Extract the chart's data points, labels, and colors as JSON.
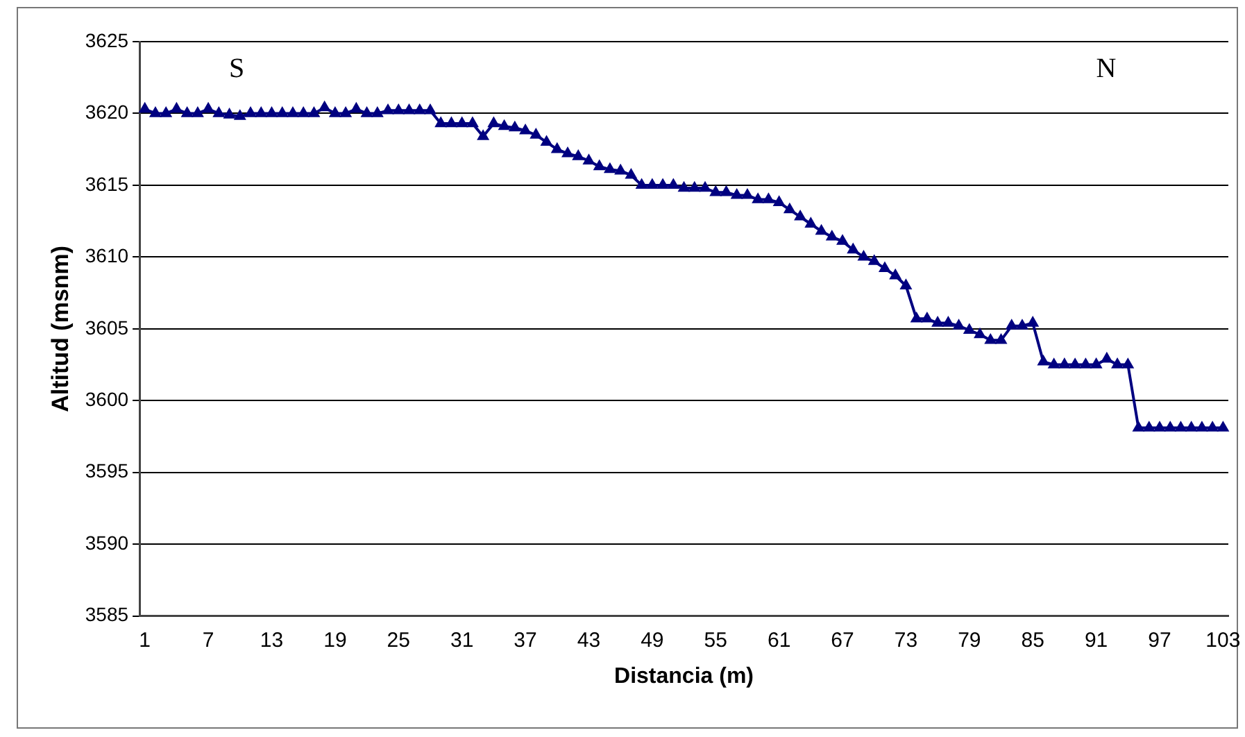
{
  "chart_data": {
    "type": "line",
    "xlabel": "Distancia (m)",
    "ylabel": "Altitud (msnm)",
    "categories": [
      "1",
      null,
      null,
      null,
      null,
      null,
      "7",
      null,
      null,
      null,
      null,
      null,
      "13",
      null,
      null,
      null,
      null,
      null,
      "19",
      null,
      null,
      null,
      null,
      null,
      "25",
      null,
      null,
      null,
      null,
      null,
      "31",
      null,
      null,
      null,
      null,
      null,
      "37",
      null,
      null,
      null,
      null,
      null,
      "43",
      null,
      null,
      null,
      null,
      null,
      "49",
      null,
      null,
      null,
      null,
      null,
      "55",
      null,
      null,
      null,
      null,
      null,
      "61",
      null,
      null,
      null,
      null,
      null,
      "67",
      null,
      null,
      null,
      null,
      null,
      "73",
      null,
      null,
      null,
      null,
      null,
      "79",
      null,
      null,
      null,
      null,
      null,
      "85",
      null,
      null,
      null,
      null,
      null,
      "91",
      null,
      null,
      null,
      null,
      null,
      "97",
      null,
      null,
      null,
      null,
      null,
      "103"
    ],
    "series": [
      {
        "color": "#000080",
        "values": [
          3620.3,
          3620,
          3620,
          3620.3,
          3620,
          3620,
          3620.3,
          3620,
          3619.9,
          3619.8,
          3620,
          3620,
          3620,
          3620,
          3620,
          3620,
          3620,
          3620.4,
          3620,
          3620,
          3620.3,
          3620,
          3620,
          3620.2,
          3620.2,
          3620.2,
          3620.2,
          3620.2,
          3619.3,
          3619.3,
          3619.3,
          3619.3,
          3618.4,
          3619.3,
          3619.1,
          3619,
          3618.8,
          3618.5,
          3618,
          3617.5,
          3617.2,
          3617,
          3616.7,
          3616.3,
          3616.1,
          3616,
          3615.7,
          3615,
          3615,
          3615,
          3615,
          3614.8,
          3614.8,
          3614.8,
          3614.5,
          3614.5,
          3614.3,
          3614.3,
          3614,
          3614,
          3613.8,
          3613.3,
          3612.8,
          3612.3,
          3611.8,
          3611.4,
          3611.1,
          3610.5,
          3610,
          3609.7,
          3609.2,
          3608.7,
          3608,
          3605.7,
          3605.7,
          3605.4,
          3605.4,
          3605.2,
          3604.9,
          3604.6,
          3604.2,
          3604.2,
          3605.2,
          3605.2,
          3605.4,
          3602.7,
          3602.5,
          3602.5,
          3602.5,
          3602.5,
          3602.5,
          3602.9,
          3602.5,
          3602.5,
          3598.1,
          3598.1,
          3598.1,
          3598.1,
          3598.1,
          3598.1,
          3598.1,
          3598.1,
          3598.1
        ]
      }
    ],
    "ylim": [
      3585,
      3625
    ],
    "yticks": [
      3585,
      3590,
      3595,
      3600,
      3605,
      3610,
      3615,
      3620,
      3625
    ],
    "grid": "y",
    "legend": false,
    "marker": "triangle",
    "line_style": "solid",
    "annotations": [
      "S",
      "N"
    ]
  }
}
